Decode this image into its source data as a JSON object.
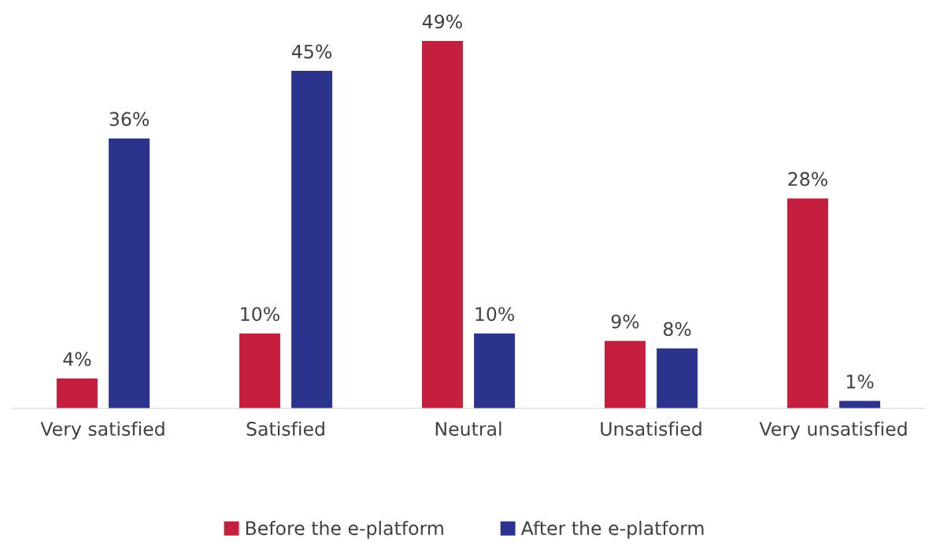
{
  "chart_data": {
    "type": "bar",
    "categories": [
      "Very satisfied",
      "Satisfied",
      "Neutral",
      "Unsatisfied",
      "Very unsatisfied"
    ],
    "series": [
      {
        "name": "Before the e-platform",
        "color": "#c41f3e",
        "values": [
          4,
          10,
          49,
          9,
          28
        ],
        "value_labels": [
          "4%",
          "10%",
          "49%",
          "9%",
          "28%"
        ]
      },
      {
        "name": "After the e-platform",
        "color": "#2b338c",
        "values": [
          36,
          45,
          10,
          8,
          1
        ],
        "value_labels": [
          "36%",
          "45%",
          "10%",
          "8%",
          "1%"
        ]
      }
    ],
    "legend": "bottom",
    "grid": false
  }
}
